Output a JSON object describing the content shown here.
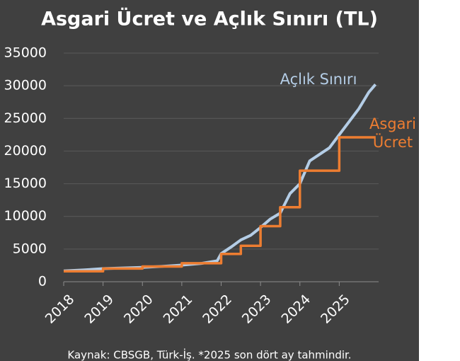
{
  "chart_data": {
    "type": "line",
    "title": "Asgari Ücret ve Açlık Sınırı (TL)",
    "source": "Kaynak: CBSGB, Türk-İş. *2025 son dört ay tahmindir.",
    "xlim": [
      2018,
      2026
    ],
    "xticks": [
      2018,
      2019,
      2020,
      2021,
      2022,
      2023,
      2024,
      2025
    ],
    "ylim": [
      0,
      35000
    ],
    "yticks": [
      0,
      5000,
      10000,
      15000,
      20000,
      25000,
      30000,
      35000
    ],
    "grid": true,
    "series": [
      {
        "name": "Açlık Sınırı",
        "color": "#b4cde6",
        "x": [
          2018,
          2018.5,
          2019,
          2019.5,
          2020,
          2020.5,
          2021,
          2021.5,
          2021.9,
          2022,
          2022.25,
          2022.5,
          2022.75,
          2023,
          2023.25,
          2023.5,
          2023.75,
          2024,
          2024.25,
          2024.5,
          2024.75,
          2025,
          2025.25,
          2025.5,
          2025.75,
          2025.92
        ],
        "values": [
          1650,
          1800,
          2000,
          2100,
          2200,
          2350,
          2550,
          2800,
          3200,
          4300,
          5300,
          6400,
          7100,
          8300,
          9600,
          10500,
          13500,
          15000,
          18500,
          19500,
          20500,
          22500,
          24500,
          26500,
          29000,
          30200
        ]
      },
      {
        "name": "Asgari Ücret",
        "color": "#ed7d31",
        "x": [
          2018,
          2019,
          2019,
          2020,
          2020,
          2021,
          2021,
          2022,
          2022,
          2022.5,
          2022.5,
          2023,
          2023,
          2023.5,
          2023.5,
          2024,
          2024,
          2025,
          2025,
          2025.92
        ],
        "values": [
          1603,
          1603,
          2020,
          2020,
          2324,
          2324,
          2826,
          2826,
          4253,
          4253,
          5500,
          5500,
          8507,
          8507,
          11402,
          11402,
          17002,
          17002,
          22104,
          22104
        ]
      }
    ]
  }
}
